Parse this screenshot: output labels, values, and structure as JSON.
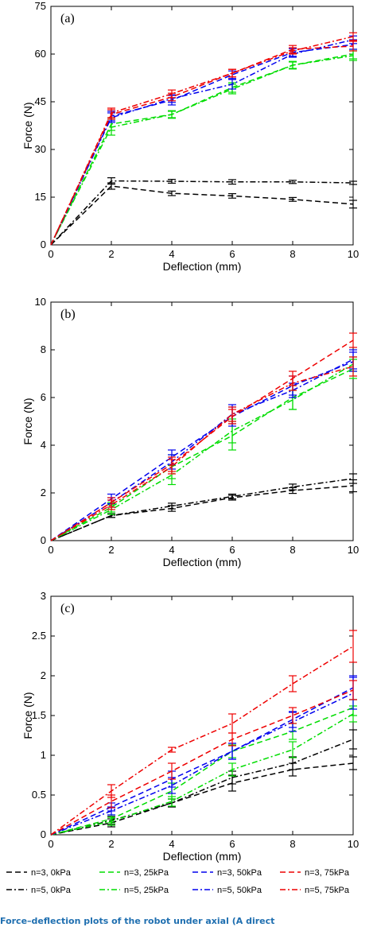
{
  "figure_caption": "Force–deflection plots of the robot under axial (A direct",
  "chart_data": [
    {
      "type": "line",
      "panel_label": "(a)",
      "xlabel": "Deflection (mm)",
      "ylabel": "Force (N)",
      "xlim": [
        0,
        10
      ],
      "ylim": [
        0,
        75
      ],
      "xticks": [
        0,
        2,
        4,
        6,
        8,
        10
      ],
      "yticks": [
        0,
        15,
        30,
        45,
        60,
        75
      ],
      "x": [
        0,
        2,
        4,
        6,
        8,
        10
      ],
      "series": [
        {
          "name": "n=3, 0kPa",
          "color": "#000000",
          "dash": "dashed",
          "values": [
            0,
            18.5,
            16.2,
            15.4,
            14.3,
            12.8
          ],
          "err": [
            0,
            1.0,
            0.7,
            0.7,
            0.6,
            1.2
          ]
        },
        {
          "name": "n=5, 0kPa",
          "color": "#000000",
          "dash": "dashdot",
          "values": [
            0,
            20.1,
            20.0,
            19.8,
            19.8,
            19.5
          ],
          "err": [
            0,
            1.0,
            0.6,
            0.7,
            0.5,
            0.5
          ]
        },
        {
          "name": "n=3, 25kPa",
          "color": "#00dd00",
          "dash": "dashed",
          "values": [
            0,
            38.0,
            41.0,
            49.5,
            56.5,
            60.0
          ],
          "err": [
            0,
            2.0,
            1.2,
            1.5,
            1.2,
            1.5
          ]
        },
        {
          "name": "n=5, 25kPa",
          "color": "#00dd00",
          "dash": "dashdot",
          "values": [
            0,
            37.0,
            41.0,
            49.0,
            56.5,
            59.5
          ],
          "err": [
            0,
            2.5,
            1.0,
            1.5,
            1.0,
            1.5
          ]
        },
        {
          "name": "n=3, 50kPa",
          "color": "#0000ee",
          "dash": "dashed",
          "values": [
            0,
            40.5,
            45.5,
            53.5,
            60.5,
            63.0
          ],
          "err": [
            0,
            1.5,
            1.5,
            1.2,
            1.2,
            1.5
          ]
        },
        {
          "name": "n=5, 50kPa",
          "color": "#0000ee",
          "dash": "dashdot",
          "values": [
            0,
            40.0,
            46.0,
            50.5,
            60.0,
            64.5
          ],
          "err": [
            0,
            1.5,
            1.2,
            1.5,
            1.0,
            1.2
          ]
        },
        {
          "name": "n=3, 75kPa",
          "color": "#ee0000",
          "dash": "dashed",
          "values": [
            0,
            41.0,
            46.5,
            54.0,
            61.5,
            62.5
          ],
          "err": [
            0,
            1.5,
            1.2,
            1.2,
            1.2,
            1.5
          ]
        },
        {
          "name": "n=5, 75kPa",
          "color": "#ee0000",
          "dash": "dashdot",
          "values": [
            0,
            41.5,
            47.5,
            54.0,
            61.0,
            65.5
          ],
          "err": [
            0,
            1.5,
            1.2,
            1.2,
            1.0,
            1.2
          ]
        }
      ]
    },
    {
      "type": "line",
      "panel_label": "(b)",
      "xlabel": "Deflection (mm)",
      "ylabel": "Force (N)",
      "xlim": [
        0,
        10
      ],
      "ylim": [
        0,
        10
      ],
      "xticks": [
        0,
        2,
        4,
        6,
        8,
        10
      ],
      "yticks": [
        0,
        2,
        4,
        6,
        8,
        10
      ],
      "x": [
        0,
        2,
        4,
        6,
        8,
        10
      ],
      "series": [
        {
          "name": "n=3, 0kPa",
          "color": "#000000",
          "dash": "dashed",
          "values": [
            0,
            1.05,
            1.35,
            1.8,
            2.1,
            2.3
          ],
          "err": [
            0,
            0.08,
            0.12,
            0.1,
            0.12,
            0.25
          ]
        },
        {
          "name": "n=5, 0kPa",
          "color": "#000000",
          "dash": "dashdot",
          "values": [
            0,
            1.05,
            1.45,
            1.85,
            2.25,
            2.6
          ],
          "err": [
            0,
            0.08,
            0.12,
            0.1,
            0.12,
            0.2
          ]
        },
        {
          "name": "n=3, 25kPa",
          "color": "#00dd00",
          "dash": "dashed",
          "values": [
            0,
            1.4,
            3.1,
            4.4,
            6.0,
            7.2
          ],
          "err": [
            0,
            0.2,
            0.5,
            0.6,
            0.5,
            0.4
          ]
        },
        {
          "name": "n=5, 25kPa",
          "color": "#00dd00",
          "dash": "dashdot",
          "values": [
            0,
            1.3,
            2.75,
            4.6,
            5.9,
            7.4
          ],
          "err": [
            0,
            0.2,
            0.4,
            0.5,
            0.4,
            0.3
          ]
        },
        {
          "name": "n=3, 50kPa",
          "color": "#0000ee",
          "dash": "dashed",
          "values": [
            0,
            1.75,
            3.5,
            5.2,
            6.5,
            7.5
          ],
          "err": [
            0,
            0.2,
            0.3,
            0.4,
            0.4,
            0.4
          ]
        },
        {
          "name": "n=5, 50kPa",
          "color": "#0000ee",
          "dash": "dashdot",
          "values": [
            0,
            1.6,
            3.3,
            5.3,
            6.3,
            7.6
          ],
          "err": [
            0,
            0.2,
            0.3,
            0.4,
            0.3,
            0.4
          ]
        },
        {
          "name": "n=3, 75kPa",
          "color": "#ee0000",
          "dash": "dashed",
          "values": [
            0,
            1.6,
            3.2,
            5.2,
            6.8,
            8.4
          ],
          "err": [
            0,
            0.2,
            0.3,
            0.3,
            0.3,
            0.3
          ]
        },
        {
          "name": "n=5, 75kPa",
          "color": "#ee0000",
          "dash": "dashdot",
          "values": [
            0,
            1.5,
            3.1,
            5.3,
            6.6,
            7.3
          ],
          "err": [
            0,
            0.2,
            0.3,
            0.3,
            0.3,
            0.4
          ]
        }
      ]
    },
    {
      "type": "line",
      "panel_label": "(c)",
      "xlabel": "Deflection (mm)",
      "ylabel": "Force (N)",
      "xlim": [
        0,
        10
      ],
      "ylim": [
        0,
        3
      ],
      "xticks": [
        0,
        2,
        4,
        6,
        8,
        10
      ],
      "yticks": [
        0,
        0.5,
        1,
        1.5,
        2,
        2.5,
        3
      ],
      "x": [
        0,
        2,
        4,
        6,
        8,
        10
      ],
      "series": [
        {
          "name": "n=3, 0kPa",
          "color": "#000000",
          "dash": "dashed",
          "values": [
            0,
            0.15,
            0.4,
            0.65,
            0.82,
            0.9
          ],
          "err": [
            0,
            0.05,
            0.05,
            0.1,
            0.08,
            0.08
          ]
        },
        {
          "name": "n=5, 0kPa",
          "color": "#000000",
          "dash": "dashdot",
          "values": [
            0,
            0.18,
            0.4,
            0.72,
            0.9,
            1.2
          ],
          "err": [
            0,
            0.05,
            0.05,
            0.08,
            0.08,
            0.12
          ]
        },
        {
          "name": "n=3, 25kPa",
          "color": "#00dd00",
          "dash": "dashed",
          "values": [
            0,
            0.2,
            0.55,
            1.05,
            1.3,
            1.6
          ],
          "err": [
            0,
            0.05,
            0.1,
            0.08,
            0.1,
            0.1
          ]
        },
        {
          "name": "n=5, 25kPa",
          "color": "#00dd00",
          "dash": "dashdot",
          "values": [
            0,
            0.17,
            0.42,
            0.82,
            1.07,
            1.52
          ],
          "err": [
            0,
            0.05,
            0.06,
            0.08,
            0.1,
            0.1
          ]
        },
        {
          "name": "n=3, 50kPa",
          "color": "#0000ee",
          "dash": "dashed",
          "values": [
            0,
            0.35,
            0.7,
            1.05,
            1.45,
            1.85
          ],
          "err": [
            0,
            0.05,
            0.1,
            0.1,
            0.1,
            0.15
          ]
        },
        {
          "name": "n=5, 50kPa",
          "color": "#0000ee",
          "dash": "dashdot",
          "values": [
            0,
            0.3,
            0.62,
            1.05,
            1.42,
            1.78
          ],
          "err": [
            0,
            0.05,
            0.1,
            0.1,
            0.12,
            0.2
          ]
        },
        {
          "name": "n=3, 75kPa",
          "color": "#ee0000",
          "dash": "dashed",
          "values": [
            0,
            0.42,
            0.8,
            1.2,
            1.5,
            1.82
          ],
          "err": [
            0,
            0.08,
            0.1,
            0.08,
            0.1,
            0.12
          ]
        },
        {
          "name": "n=5, 75kPa",
          "color": "#ee0000",
          "dash": "dashdot",
          "values": [
            0,
            0.55,
            1.07,
            1.4,
            1.9,
            2.37
          ],
          "err": [
            0,
            0.08,
            0.03,
            0.12,
            0.1,
            0.2
          ]
        }
      ]
    }
  ]
}
